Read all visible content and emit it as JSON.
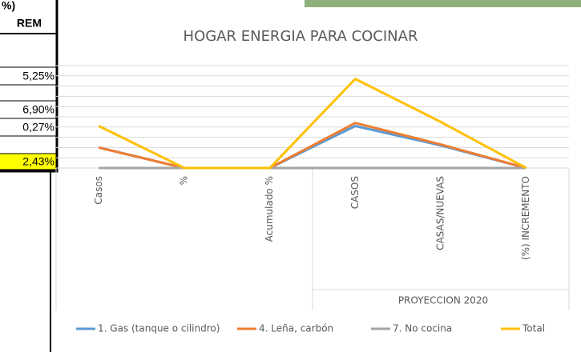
{
  "table": {
    "header": [
      "%)",
      "REM"
    ],
    "rows": [
      "5,25%",
      "6,90%",
      "0,27%",
      "2,43%"
    ]
  },
  "chart_data": {
    "type": "line",
    "title": "HOGAR ENERGIA PARA COCINAR",
    "categories": [
      "Casos",
      "%",
      "Acumulado %",
      "CASOS",
      "CASAS/NUEVAS",
      "(%) INCREMENTO"
    ],
    "group_label": "PROYECCION 2020",
    "series": [
      {
        "name": "1. Gas (tanque o cilindro)",
        "color": "#5b9bd5",
        "values": [
          20,
          0,
          0,
          41,
          22,
          0
        ]
      },
      {
        "name": "4. Leña, carbón",
        "color": "#ed7d31",
        "values": [
          20,
          0,
          0,
          44,
          23,
          0
        ]
      },
      {
        "name": "7. No cocina",
        "color": "#a5a5a5",
        "values": [
          0,
          0,
          0,
          0,
          0,
          0
        ]
      },
      {
        "name": "Total",
        "color": "#ffc000",
        "values": [
          41,
          0,
          0,
          87,
          45,
          0
        ]
      }
    ],
    "ylim": [
      0,
      100
    ],
    "yticks": [
      0,
      10,
      20,
      30,
      40,
      50,
      60,
      70,
      80,
      90,
      100
    ],
    "grid": true,
    "legend": "bottom"
  }
}
